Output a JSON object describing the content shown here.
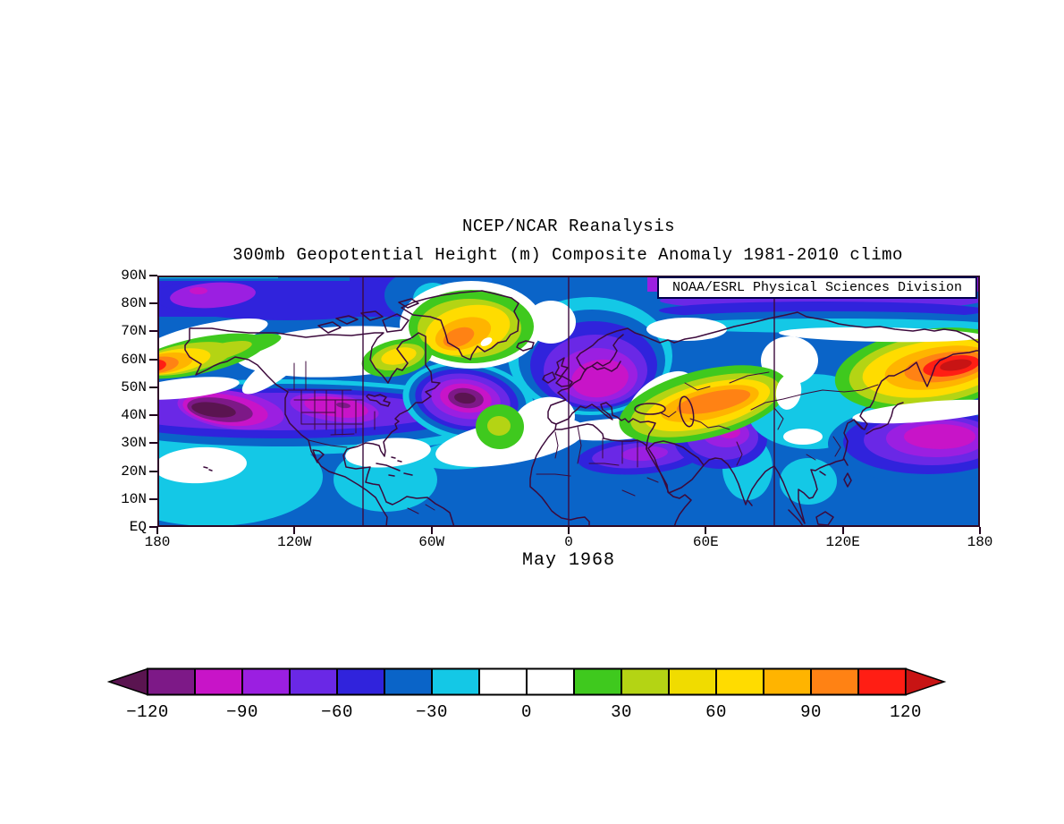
{
  "header": {
    "title": "NCEP/NCAR Reanalysis",
    "subtitle": "300mb Geopotential Height (m) Composite Anomaly 1981-2010 climo"
  },
  "map": {
    "source_box_label": "NOAA/ESRL Physical Sciences Division",
    "date_label": "May 1968",
    "lat_tick_labels": [
      "90N",
      "80N",
      "70N",
      "60N",
      "50N",
      "40N",
      "30N",
      "20N",
      "10N",
      "EQ"
    ],
    "lon_tick_labels": [
      "180",
      "120W",
      "60W",
      "0",
      "60E",
      "120E",
      "180"
    ],
    "land_outline_color": "#3C0A3C",
    "grid_color": "#3C0A3C",
    "frame_color": "#2D0826"
  },
  "chart_data": {
    "type": "filled_contour_map",
    "title": "NCEP/NCAR Reanalysis",
    "variable": "300mb Geopotential Height Composite Anomaly",
    "units": "m",
    "climatology": "1981-2010 climo",
    "composite_period": "May 1968",
    "source": "NOAA/ESRL Physical Sciences Division",
    "projection": "equirectangular",
    "lon_range": [
      "180W",
      "180E"
    ],
    "lat_range": [
      "EQ",
      "90N"
    ],
    "lat_ticks": [
      "90N",
      "80N",
      "70N",
      "60N",
      "50N",
      "40N",
      "30N",
      "20N",
      "10N",
      "EQ"
    ],
    "lon_ticks": [
      "180",
      "120W",
      "60W",
      "0",
      "60E",
      "120E",
      "180"
    ],
    "grid_meridians": [
      "90W",
      "0",
      "90E"
    ],
    "contour_interval_m": 15,
    "colorbar_range_m": [
      -120,
      120
    ],
    "colorbar": {
      "tick_labels": [
        "−120",
        "−90",
        "−60",
        "−30",
        "0",
        "30",
        "60",
        "90",
        "120"
      ],
      "cell_colors": [
        "#7D1987",
        "#C814C8",
        "#9B1FE1",
        "#6A28E6",
        "#3023DC",
        "#0A64C8",
        "#14C8E6",
        "#FFFFFF",
        "#FFFFFF",
        "#3FC91E",
        "#B4D414",
        "#F0DC00",
        "#FFDC00",
        "#FFB400",
        "#FF8214",
        "#FF1E14"
      ],
      "below_min_color": "#5A1450",
      "above_max_color": "#C81414",
      "outline_color": "#000000"
    },
    "anomaly_centers": [
      {
        "region": "Gulf of Alaska / NE Pacific",
        "lon": "150W",
        "lat": "42N",
        "sign": "negative",
        "approx_peak_m": -130
      },
      {
        "region": "Western North Atlantic",
        "lon": "45W",
        "lat": "47N",
        "sign": "negative",
        "approx_peak_m": -130
      },
      {
        "region": "Central United States",
        "lon": "100W",
        "lat": "42N",
        "sign": "negative",
        "approx_peak_m": -95
      },
      {
        "region": "Northern Europe / Scandinavia-Baltic",
        "lon": "15E",
        "lat": "55N",
        "sign": "negative",
        "approx_peak_m": -100
      },
      {
        "region": "NE Africa / Egypt",
        "lon": "30E",
        "lat": "26N",
        "sign": "negative",
        "approx_peak_m": -75
      },
      {
        "region": "Iran / Pakistan",
        "lon": "70E",
        "lat": "35N",
        "sign": "negative",
        "approx_peak_m": -90
      },
      {
        "region": "NW Pacific east of Japan",
        "lon": "160E",
        "lat": "30N",
        "sign": "negative",
        "approx_peak_m": -95
      },
      {
        "region": "Arctic cap, Siberian side",
        "lon": "90E-170E",
        "lat": "85N",
        "sign": "negative",
        "approx_peak_m": -100
      },
      {
        "region": "Bering Sea / East Siberia-Kamchatka",
        "lon": "170E",
        "lat": "56N",
        "sign": "positive",
        "approx_peak_m": 130
      },
      {
        "region": "Greenland",
        "lon": "45W",
        "lat": "67N",
        "sign": "positive",
        "approx_peak_m": 100
      },
      {
        "region": "NE Canada / Quebec",
        "lon": "75W",
        "lat": "58N",
        "sign": "positive",
        "approx_peak_m": 70
      },
      {
        "region": "Kazakhstan / Caspian",
        "lon": "60E",
        "lat": "45N",
        "sign": "positive",
        "approx_peak_m": 100
      },
      {
        "region": "Azores",
        "lon": "30W",
        "lat": "37N",
        "sign": "positive",
        "approx_peak_m": 35
      }
    ]
  }
}
